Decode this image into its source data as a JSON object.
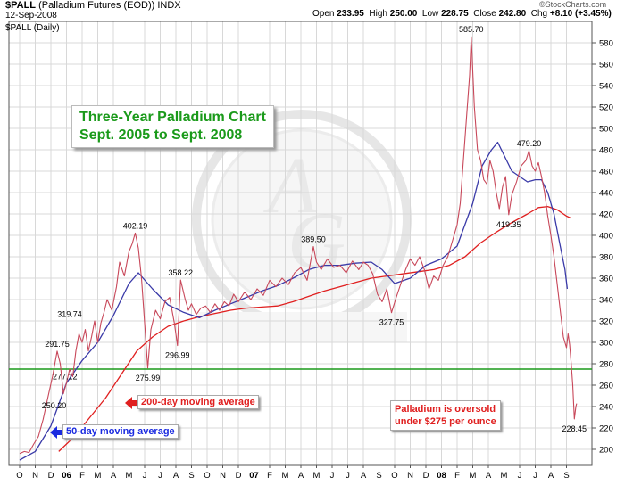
{
  "header": {
    "symbol": "$PALL",
    "name": "(Palladium Futures (EOD)) INDX",
    "date": "12-Sep-2008",
    "series_label": "$PALL (Daily)",
    "watermark": "©StockCharts.com",
    "quote": {
      "open_label": "Open",
      "open": "233.95",
      "high_label": "High",
      "high": "250.00",
      "low_label": "Low",
      "low": "228.75",
      "close_label": "Close",
      "close": "242.80",
      "chg_label": "Chg",
      "chg": "+8.10 (+3.45%)"
    }
  },
  "title_box": {
    "line1": "Three-Year Palladium Chart",
    "line2": "Sept. 2005 to Sept. 2008"
  },
  "annotations": {
    "ma200": "200-day moving average",
    "ma50": "50-day moving average",
    "oversold_line1": "Palladium is oversold",
    "oversold_line2": "under $275 per ounce"
  },
  "colors": {
    "price": "#c8485a",
    "ma50": "#3a3aa8",
    "ma200": "#e02020",
    "support": "#1a9a1a",
    "title_text": "#1a9a1a",
    "note_text": "#e02020",
    "arrow_red": "#e02020",
    "arrow_blue": "#1a2ae0",
    "grid": "#d8d8d8"
  },
  "chart_data": {
    "type": "line",
    "ylim": [
      185,
      600
    ],
    "y_ticks": [
      200,
      220,
      240,
      260,
      280,
      300,
      320,
      340,
      360,
      380,
      400,
      420,
      440,
      460,
      480,
      500,
      520,
      540,
      560,
      580
    ],
    "x_ticks": [
      "O",
      "N",
      "D",
      "06",
      "F",
      "M",
      "A",
      "M",
      "J",
      "J",
      "A",
      "S",
      "O",
      "N",
      "D",
      "07",
      "F",
      "M",
      "A",
      "M",
      "J",
      "J",
      "A",
      "S",
      "O",
      "N",
      "D",
      "08",
      "F",
      "M",
      "A",
      "M",
      "J",
      "J",
      "A",
      "S"
    ],
    "support_level": 275,
    "price_labels": [
      {
        "t": 2.4,
        "v": 291.75,
        "text": "291.75"
      },
      {
        "t": 2.2,
        "v": 250.2,
        "text": "250.20"
      },
      {
        "t": 2.9,
        "v": 277.12,
        "text": "277.12"
      },
      {
        "t": 3.2,
        "v": 319.74,
        "text": "319.74"
      },
      {
        "t": 7.4,
        "v": 402.19,
        "text": "402.19"
      },
      {
        "t": 8.2,
        "v": 275.99,
        "text": "275.99"
      },
      {
        "t": 10.3,
        "v": 358.22,
        "text": "358.22"
      },
      {
        "t": 10.1,
        "v": 296.99,
        "text": "296.99"
      },
      {
        "t": 18.8,
        "v": 389.5,
        "text": "389.50"
      },
      {
        "t": 23.8,
        "v": 327.75,
        "text": "327.75"
      },
      {
        "t": 28.9,
        "v": 585.7,
        "text": "585.70"
      },
      {
        "t": 31.3,
        "v": 419.35,
        "text": "419.35"
      },
      {
        "t": 32.6,
        "v": 479.2,
        "text": "479.20"
      },
      {
        "t": 35.5,
        "v": 228.45,
        "text": "228.45"
      }
    ],
    "series": [
      {
        "name": "$PALL (Daily)",
        "points": [
          [
            0,
            196
          ],
          [
            0.3,
            198
          ],
          [
            0.6,
            197
          ],
          [
            0.9,
            205
          ],
          [
            1.2,
            212
          ],
          [
            1.5,
            228
          ],
          [
            1.8,
            248
          ],
          [
            2.1,
            268
          ],
          [
            2.4,
            291.75
          ],
          [
            2.6,
            280
          ],
          [
            2.8,
            252
          ],
          [
            3.0,
            262
          ],
          [
            3.2,
            275
          ],
          [
            3.4,
            268
          ],
          [
            3.6,
            292
          ],
          [
            3.8,
            308
          ],
          [
            4.0,
            300
          ],
          [
            4.2,
            312
          ],
          [
            4.4,
            292
          ],
          [
            4.6,
            305
          ],
          [
            4.8,
            320
          ],
          [
            5.0,
            300
          ],
          [
            5.2,
            318
          ],
          [
            5.4,
            328
          ],
          [
            5.6,
            340
          ],
          [
            5.9,
            330
          ],
          [
            6.2,
            352
          ],
          [
            6.4,
            375
          ],
          [
            6.7,
            362
          ],
          [
            7.0,
            385
          ],
          [
            7.2,
            392
          ],
          [
            7.4,
            402.19
          ],
          [
            7.6,
            388
          ],
          [
            7.8,
            360
          ],
          [
            8.0,
            318
          ],
          [
            8.2,
            275.99
          ],
          [
            8.4,
            312
          ],
          [
            8.7,
            330
          ],
          [
            9.0,
            322
          ],
          [
            9.3,
            338
          ],
          [
            9.6,
            342
          ],
          [
            9.9,
            318
          ],
          [
            10.1,
            296.99
          ],
          [
            10.3,
            358.22
          ],
          [
            10.6,
            340
          ],
          [
            10.8,
            330
          ],
          [
            11.0,
            336
          ],
          [
            11.3,
            326
          ],
          [
            11.6,
            332
          ],
          [
            11.9,
            334
          ],
          [
            12.2,
            328
          ],
          [
            12.5,
            336
          ],
          [
            12.8,
            330
          ],
          [
            13.1,
            338
          ],
          [
            13.4,
            334
          ],
          [
            13.7,
            345
          ],
          [
            14.0,
            338
          ],
          [
            14.4,
            347
          ],
          [
            14.8,
            340
          ],
          [
            15.2,
            350
          ],
          [
            15.6,
            344
          ],
          [
            16.0,
            358
          ],
          [
            16.4,
            352
          ],
          [
            16.8,
            360
          ],
          [
            17.2,
            354
          ],
          [
            17.6,
            365
          ],
          [
            18.0,
            370
          ],
          [
            18.4,
            358
          ],
          [
            18.8,
            389.5
          ],
          [
            19.0,
            375
          ],
          [
            19.3,
            368
          ],
          [
            19.7,
            378
          ],
          [
            20.1,
            370
          ],
          [
            20.5,
            372
          ],
          [
            20.9,
            365
          ],
          [
            21.3,
            376
          ],
          [
            21.7,
            368
          ],
          [
            22.0,
            375
          ],
          [
            22.3,
            372
          ],
          [
            22.6,
            364
          ],
          [
            22.9,
            345
          ],
          [
            23.2,
            338
          ],
          [
            23.5,
            350
          ],
          [
            23.8,
            327.75
          ],
          [
            24.1,
            342
          ],
          [
            24.4,
            355
          ],
          [
            24.7,
            368
          ],
          [
            25.0,
            378
          ],
          [
            25.3,
            372
          ],
          [
            25.6,
            380
          ],
          [
            25.9,
            368
          ],
          [
            26.2,
            350
          ],
          [
            26.5,
            362
          ],
          [
            26.8,
            358
          ],
          [
            27.1,
            372
          ],
          [
            27.4,
            380
          ],
          [
            27.7,
            395
          ],
          [
            28.0,
            410
          ],
          [
            28.2,
            430
          ],
          [
            28.4,
            470
          ],
          [
            28.6,
            510
          ],
          [
            28.8,
            550
          ],
          [
            28.9,
            585.7
          ],
          [
            29.1,
            520
          ],
          [
            29.3,
            480
          ],
          [
            29.5,
            470
          ],
          [
            29.7,
            452
          ],
          [
            29.9,
            448
          ],
          [
            30.1,
            470
          ],
          [
            30.3,
            460
          ],
          [
            30.5,
            440
          ],
          [
            30.7,
            425
          ],
          [
            30.9,
            445
          ],
          [
            31.1,
            455
          ],
          [
            31.3,
            419.35
          ],
          [
            31.5,
            438
          ],
          [
            31.8,
            450
          ],
          [
            32.1,
            465
          ],
          [
            32.4,
            470
          ],
          [
            32.6,
            479.2
          ],
          [
            32.8,
            465
          ],
          [
            33.0,
            460
          ],
          [
            33.2,
            468
          ],
          [
            33.4,
            455
          ],
          [
            33.6,
            440
          ],
          [
            33.8,
            418
          ],
          [
            34.0,
            400
          ],
          [
            34.2,
            380
          ],
          [
            34.4,
            355
          ],
          [
            34.6,
            330
          ],
          [
            34.8,
            305
          ],
          [
            35.0,
            295
          ],
          [
            35.1,
            308
          ],
          [
            35.2,
            298
          ],
          [
            35.3,
            280
          ],
          [
            35.4,
            260
          ],
          [
            35.5,
            228.45
          ],
          [
            35.6,
            240
          ],
          [
            35.65,
            242.8
          ]
        ]
      },
      {
        "name": "50-day moving average",
        "points": [
          [
            0,
            190
          ],
          [
            1,
            198
          ],
          [
            2,
            222
          ],
          [
            3,
            262
          ],
          [
            4,
            283
          ],
          [
            5,
            300
          ],
          [
            6,
            325
          ],
          [
            7,
            355
          ],
          [
            7.6,
            365
          ],
          [
            8.5,
            350
          ],
          [
            9.5,
            335
          ],
          [
            10.5,
            328
          ],
          [
            11.5,
            323
          ],
          [
            12.5,
            330
          ],
          [
            13.5,
            336
          ],
          [
            14.5,
            342
          ],
          [
            15.5,
            348
          ],
          [
            16.5,
            353
          ],
          [
            17.5,
            360
          ],
          [
            18.5,
            368
          ],
          [
            19.5,
            372
          ],
          [
            20.5,
            372
          ],
          [
            21.5,
            374
          ],
          [
            22.5,
            375
          ],
          [
            23.2,
            368
          ],
          [
            24.0,
            355
          ],
          [
            25.0,
            360
          ],
          [
            26.0,
            372
          ],
          [
            27.0,
            378
          ],
          [
            28.0,
            390
          ],
          [
            29.0,
            430
          ],
          [
            29.6,
            465
          ],
          [
            30.2,
            480
          ],
          [
            30.6,
            487
          ],
          [
            31.0,
            475
          ],
          [
            31.5,
            460
          ],
          [
            32.0,
            455
          ],
          [
            32.5,
            450
          ],
          [
            33.0,
            452
          ],
          [
            33.4,
            452
          ],
          [
            33.8,
            440
          ],
          [
            34.2,
            420
          ],
          [
            34.6,
            390
          ],
          [
            34.9,
            368
          ],
          [
            35.05,
            350
          ]
        ]
      },
      {
        "name": "200-day moving average",
        "points": [
          [
            2.5,
            198
          ],
          [
            3.5,
            212
          ],
          [
            4.5,
            230
          ],
          [
            5.5,
            248
          ],
          [
            6.5,
            270
          ],
          [
            7.5,
            292
          ],
          [
            8.5,
            305
          ],
          [
            9.5,
            315
          ],
          [
            10.5,
            320
          ],
          [
            11.5,
            324
          ],
          [
            12.5,
            327
          ],
          [
            13.5,
            330
          ],
          [
            14.5,
            332
          ],
          [
            15.5,
            333
          ],
          [
            16.5,
            334
          ],
          [
            17.5,
            338
          ],
          [
            18.5,
            343
          ],
          [
            19.5,
            348
          ],
          [
            20.5,
            352
          ],
          [
            21.5,
            356
          ],
          [
            22.5,
            360
          ],
          [
            23.5,
            362
          ],
          [
            24.5,
            364
          ],
          [
            25.5,
            366
          ],
          [
            26.5,
            368
          ],
          [
            27.5,
            372
          ],
          [
            28.5,
            380
          ],
          [
            29.5,
            393
          ],
          [
            30.5,
            403
          ],
          [
            31.5,
            412
          ],
          [
            32.5,
            420
          ],
          [
            33.2,
            426
          ],
          [
            33.8,
            427
          ],
          [
            34.4,
            424
          ],
          [
            35.0,
            418
          ],
          [
            35.3,
            416
          ]
        ]
      }
    ]
  }
}
